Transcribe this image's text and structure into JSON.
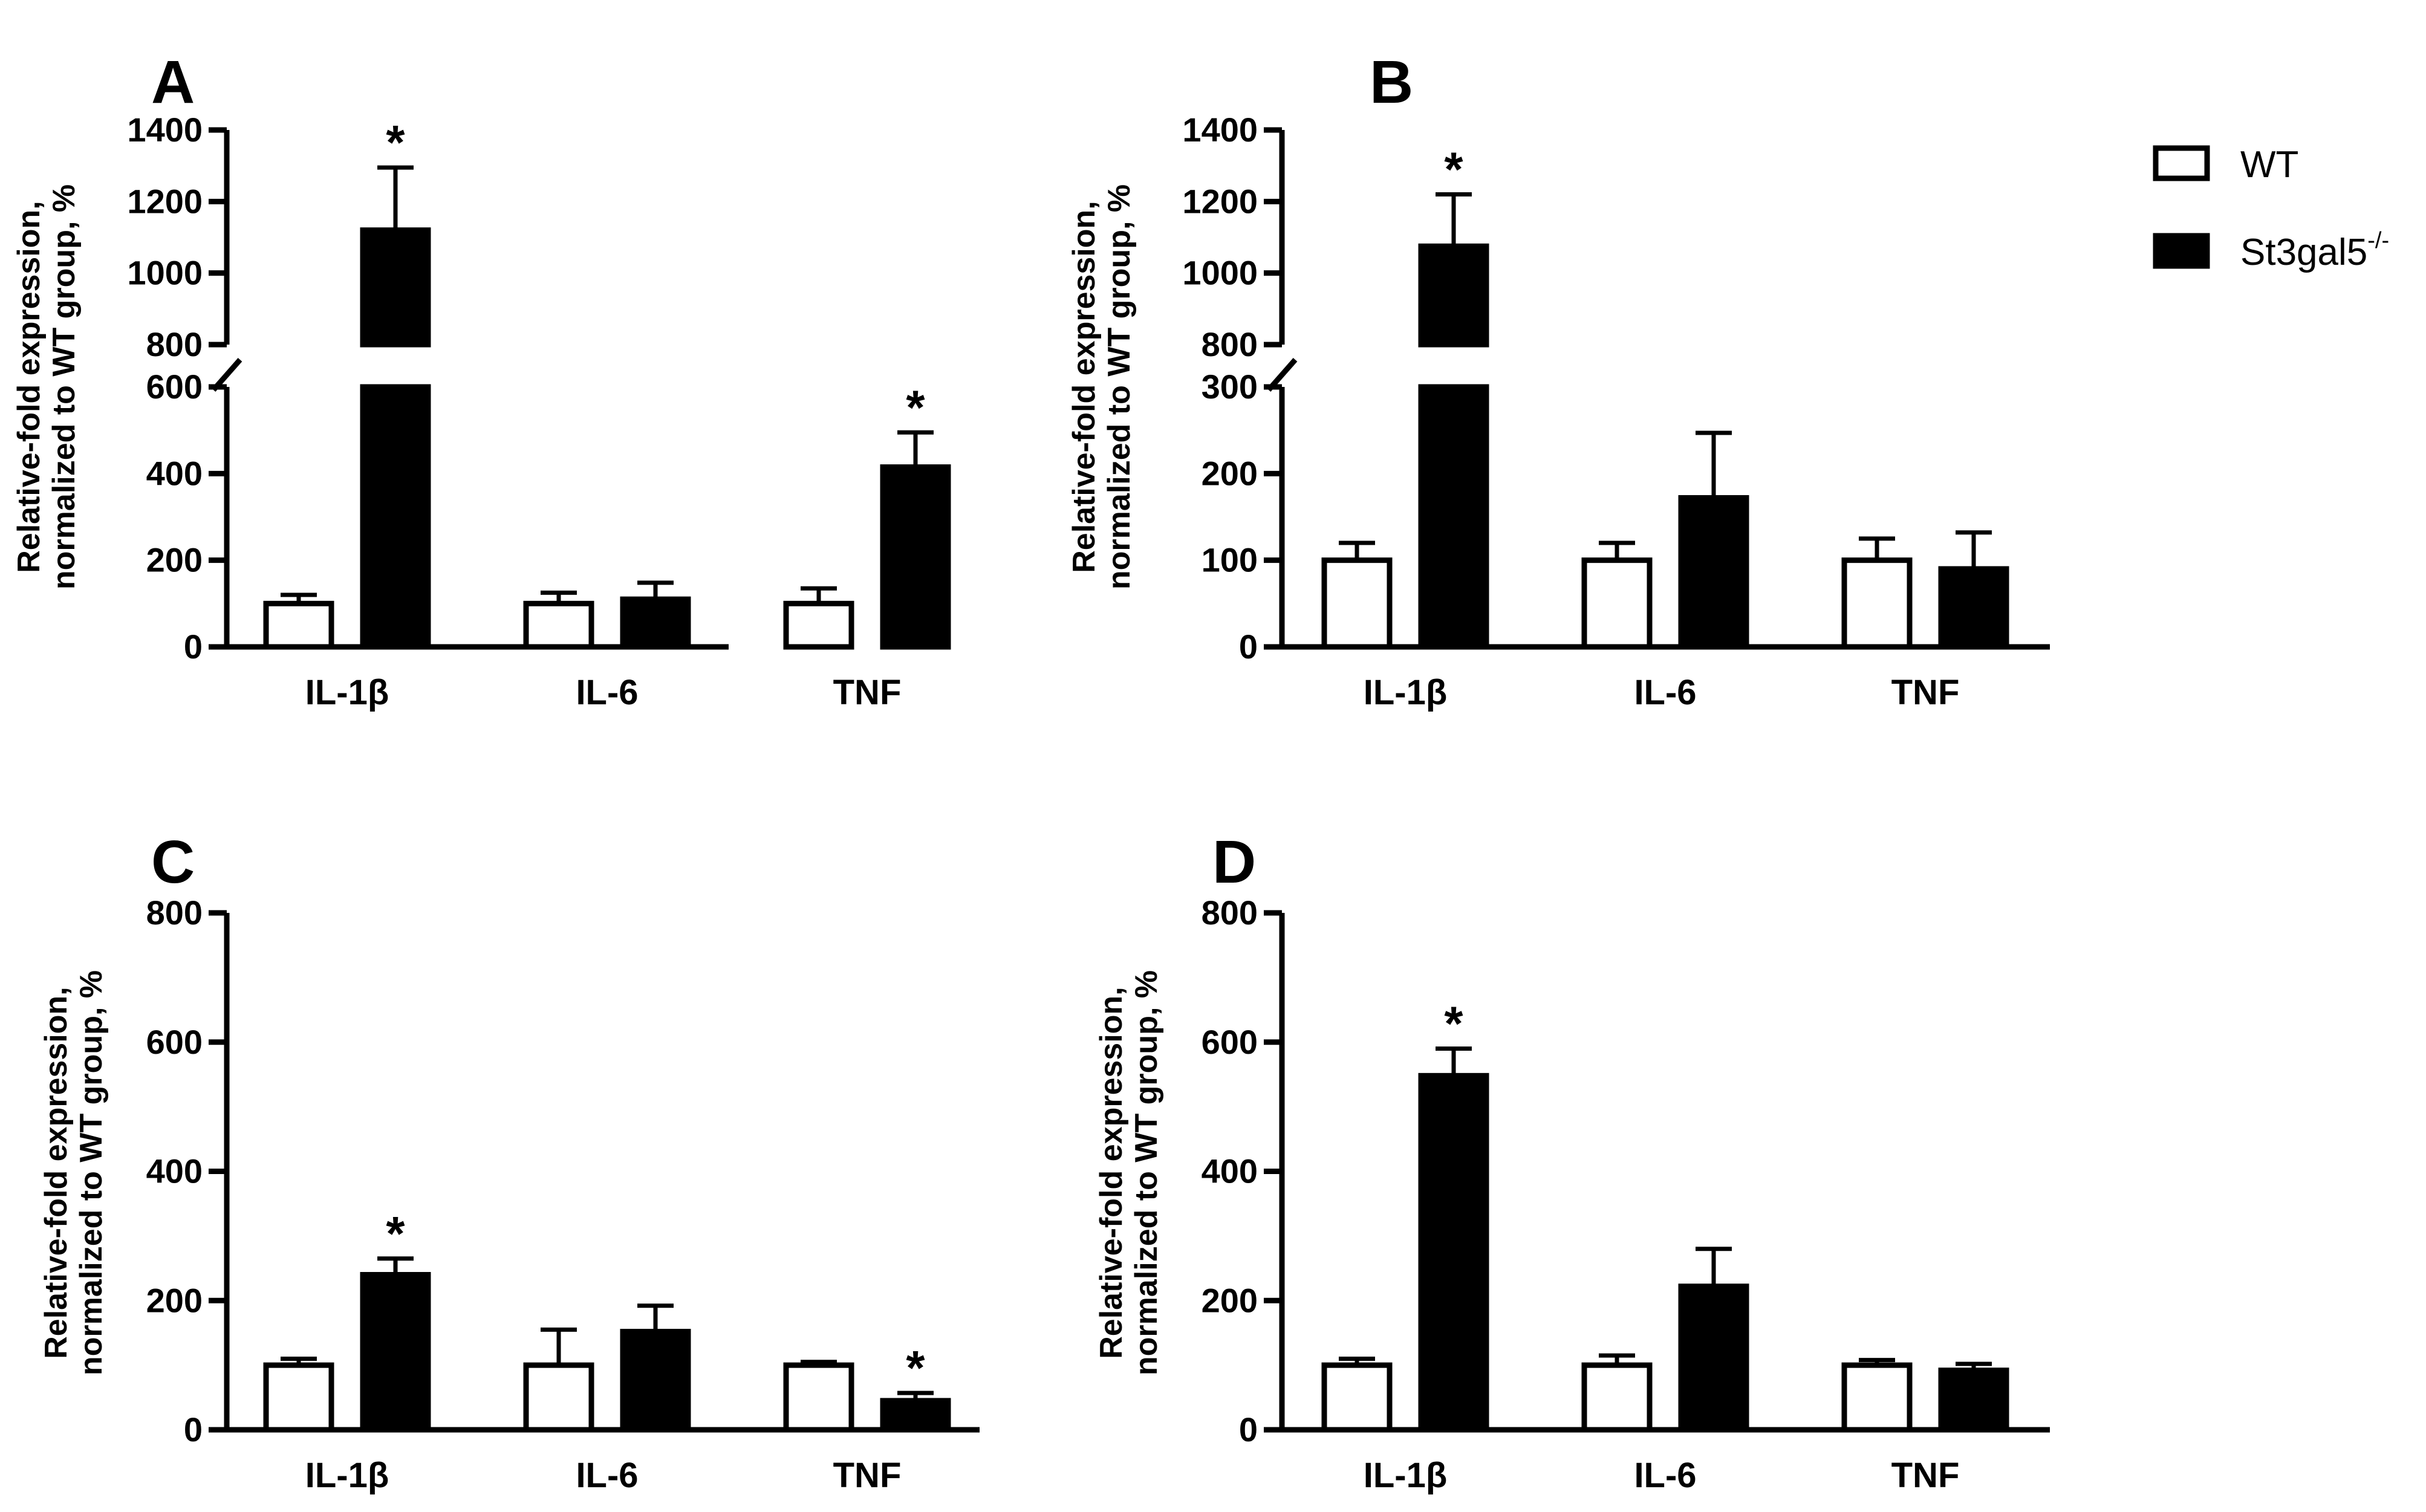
{
  "colors": {
    "wt_fill": "#ffffff",
    "ko_fill": "#000000",
    "stroke": "#000000"
  },
  "legend": {
    "items": [
      {
        "label": "WT",
        "sup": "",
        "fill": "#ffffff"
      },
      {
        "label": "St3gal5",
        "sup": "-/-",
        "fill": "#000000"
      }
    ]
  },
  "chart_data": [
    {
      "panel": "A",
      "type": "bar",
      "title": "",
      "ylabel_lines": [
        "Relative-fold expression,",
        "normalized to WT group, %"
      ],
      "categories": [
        "IL-1β",
        "IL-6",
        "TNF"
      ],
      "series": [
        {
          "name": "WT",
          "values": [
            100,
            100,
            100
          ],
          "errors": [
            20,
            25,
            35
          ]
        },
        {
          "name": "St3gal5-/-",
          "values": [
            1120,
            110,
            415
          ],
          "errors": [
            175,
            38,
            80
          ]
        }
      ],
      "significance": [
        [
          false,
          true
        ],
        [
          false,
          false
        ],
        [
          false,
          true
        ]
      ],
      "axis_break": {
        "lower": [
          0,
          600
        ],
        "upper": [
          800,
          1400
        ]
      },
      "ticks": [
        0,
        200,
        400,
        600,
        800,
        1000,
        1200,
        1400
      ]
    },
    {
      "panel": "B",
      "type": "bar",
      "title": "",
      "ylabel_lines": [
        "Relative-fold expression,",
        "normalized to WT group, %"
      ],
      "categories": [
        "IL-1β",
        "IL-6",
        "TNF"
      ],
      "series": [
        {
          "name": "WT",
          "values": [
            100,
            100,
            100
          ],
          "errors": [
            20,
            20,
            25
          ]
        },
        {
          "name": "St3gal5-/-",
          "values": [
            1075,
            172,
            90
          ],
          "errors": [
            145,
            75,
            42
          ]
        }
      ],
      "significance": [
        [
          false,
          true
        ],
        [
          false,
          false
        ],
        [
          false,
          false
        ]
      ],
      "axis_break": {
        "lower": [
          0,
          300
        ],
        "upper": [
          800,
          1400
        ]
      },
      "ticks": [
        0,
        100,
        200,
        300,
        800,
        1000,
        1200,
        1400
      ]
    },
    {
      "panel": "C",
      "type": "bar",
      "title": "",
      "ylabel_lines": [
        "Relative-fold expression,",
        "normalized to WT group, %"
      ],
      "categories": [
        "IL-1β",
        "IL-6",
        "TNF"
      ],
      "series": [
        {
          "name": "WT",
          "values": [
            100,
            100,
            100
          ],
          "errors": [
            10,
            55,
            5
          ]
        },
        {
          "name": "St3gal5-/-",
          "values": [
            240,
            152,
            45
          ],
          "errors": [
            25,
            40,
            12
          ]
        }
      ],
      "significance": [
        [
          false,
          true
        ],
        [
          false,
          false
        ],
        [
          false,
          true
        ]
      ],
      "ylim": [
        0,
        800
      ],
      "ticks": [
        0,
        200,
        400,
        600,
        800
      ]
    },
    {
      "panel": "D",
      "type": "bar",
      "title": "",
      "ylabel_lines": [
        "Relative-fold expression,",
        "normalized to WT group, %"
      ],
      "categories": [
        "IL-1β",
        "IL-6",
        "TNF"
      ],
      "series": [
        {
          "name": "WT",
          "values": [
            100,
            100,
            100
          ],
          "errors": [
            10,
            15,
            8
          ]
        },
        {
          "name": "St3gal5-/-",
          "values": [
            548,
            222,
            92
          ],
          "errors": [
            42,
            58,
            10
          ]
        }
      ],
      "significance": [
        [
          false,
          true
        ],
        [
          false,
          false
        ],
        [
          false,
          false
        ]
      ],
      "ylim": [
        0,
        800
      ],
      "ticks": [
        0,
        200,
        400,
        600,
        800
      ]
    }
  ]
}
